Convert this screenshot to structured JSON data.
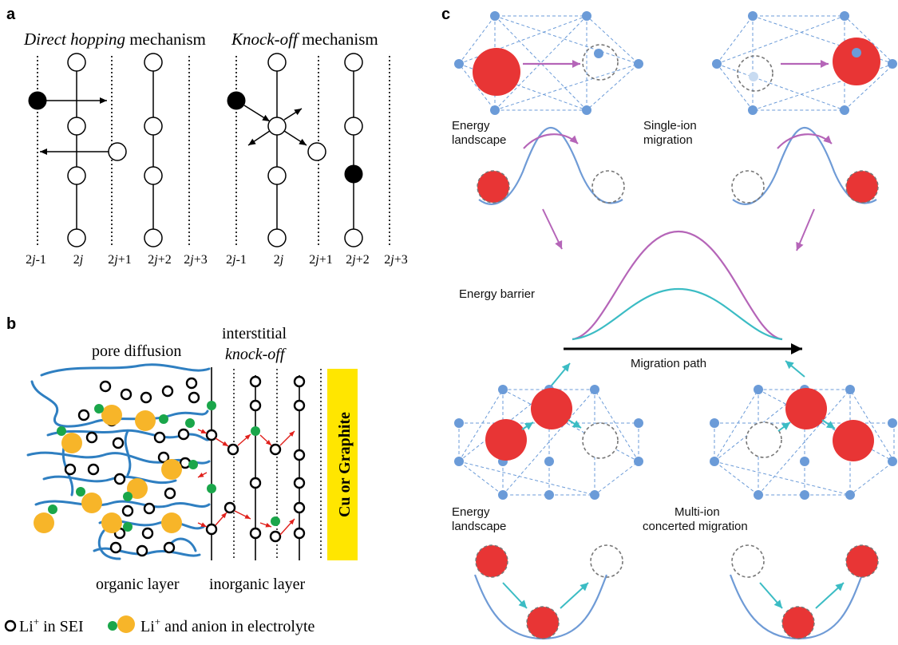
{
  "panel_a": {
    "tag": "a",
    "direct": {
      "title_italic": "Direct hopping",
      "title_rest": " mechanism"
    },
    "knock": {
      "title_italic": "Knock-off",
      "title_rest": " mechanism"
    },
    "ticks": [
      {
        "num": "2",
        "it": "j",
        "suf": "-1"
      },
      {
        "num": "2",
        "it": "j",
        "suf": ""
      },
      {
        "num": "2",
        "it": "j",
        "suf": "+1"
      },
      {
        "num": "2",
        "it": "j",
        "suf": "+2"
      },
      {
        "num": "2",
        "it": "j",
        "suf": "+3"
      }
    ]
  },
  "panel_b": {
    "tag": "b",
    "pore": "pore diffusion",
    "interstitial": "interstitial",
    "knockoff": "knock-off",
    "cu": "Cu or Graphite",
    "organic": "organic layer",
    "inorganic": "inorganic layer",
    "legend_sei": "Li",
    "legend_sei_sup": "+",
    "legend_sei_rest": " in SEI",
    "legend_elec": "Li",
    "legend_elec_sup": "+",
    "legend_elec_rest": " and anion in electrolyte"
  },
  "panel_c": {
    "tag": "c",
    "energy_landscape": "Energy landscape",
    "single_ion": "Single-ion migration",
    "energy_barrier": "Energy barrier",
    "migration_path": "Migration path",
    "energy_landscape2": "Energy landscape",
    "multi_ion": "Multi-ion concerted migration"
  },
  "colors": {
    "ion_red": "#e83535",
    "node_blue": "#6b9bd8",
    "curve_blue": "#6f9bd6",
    "magenta": "#b565b8",
    "teal": "#3bbcc4",
    "sei_blue": "#2f7fc1",
    "orange": "#f7b529",
    "green": "#1aa64a",
    "yellow": "#ffe600"
  }
}
